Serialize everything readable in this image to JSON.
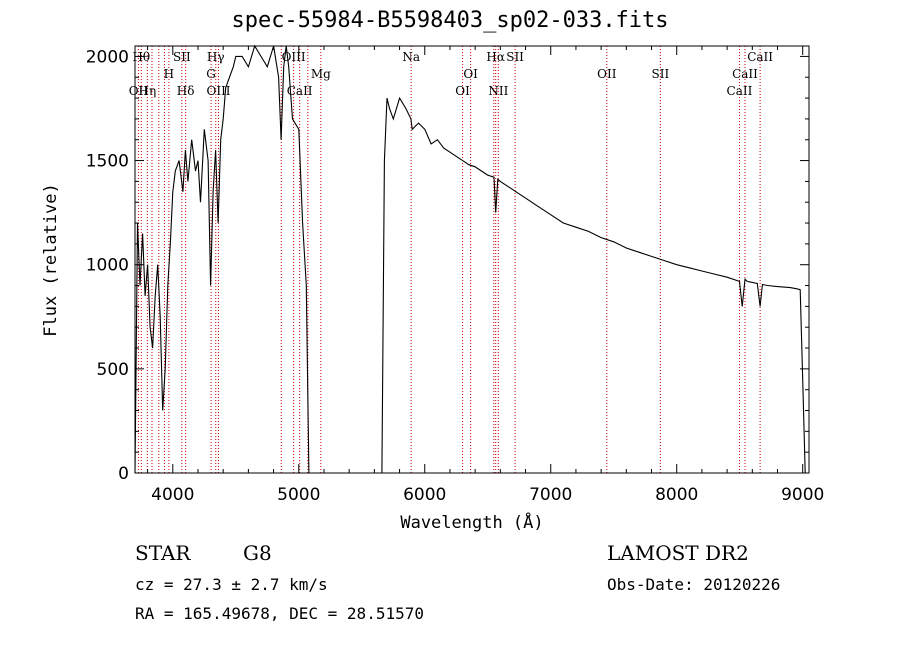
{
  "chart_data": {
    "type": "line",
    "title": "spec-55984-B5598403_sp02-033.fits",
    "xlabel": "Wavelength (Å)",
    "ylabel": "Flux (relative)",
    "xlim": [
      3700,
      9050
    ],
    "ylim": [
      0,
      2050
    ],
    "xticks": [
      4000,
      5000,
      6000,
      7000,
      8000,
      9000
    ],
    "yticks": [
      0,
      500,
      1000,
      1500,
      2000
    ],
    "grid": false,
    "line_color": "#000000",
    "marker_color": "#cc0000",
    "series": [
      {
        "x": [
          3700,
          3720,
          3740,
          3760,
          3780,
          3800,
          3820,
          3840,
          3860,
          3880,
          3900,
          3920,
          3940,
          3960,
          3980,
          4000,
          4020,
          4050,
          4080,
          4100,
          4120,
          4150,
          4180,
          4200,
          4220,
          4250,
          4280,
          4300,
          4320,
          4340,
          4360,
          4380,
          4400,
          4420,
          4450,
          4480,
          4500,
          4550,
          4600,
          4650,
          4700,
          4750,
          4800,
          4840,
          4860,
          4880,
          4900,
          4920,
          4950,
          5000,
          5030,
          5060,
          5080,
          5100,
          5120,
          5200,
          5300,
          5400,
          5500,
          5600,
          5660,
          5680,
          5700,
          5720,
          5750,
          5800,
          5850,
          5890,
          5900,
          5950,
          6000,
          6050,
          6100,
          6150,
          6200,
          6250,
          6300,
          6350,
          6400,
          6450,
          6500,
          6550,
          6563,
          6580,
          6600,
          6650,
          6700,
          6750,
          6800,
          6900,
          7000,
          7100,
          7200,
          7300,
          7400,
          7500,
          7600,
          7700,
          7800,
          7900,
          8000,
          8100,
          8200,
          8300,
          8400,
          8498,
          8520,
          8542,
          8560,
          8600,
          8640,
          8662,
          8680,
          8720,
          8800,
          8900,
          8950,
          8980,
          9000,
          9020
        ],
        "y": [
          0,
          1200,
          900,
          1150,
          850,
          1000,
          700,
          600,
          850,
          1000,
          750,
          300,
          500,
          900,
          1100,
          1350,
          1450,
          1500,
          1350,
          1550,
          1400,
          1600,
          1450,
          1500,
          1300,
          1650,
          1500,
          900,
          1350,
          1550,
          1200,
          1600,
          1700,
          1850,
          1900,
          1950,
          2000,
          2000,
          1950,
          2050,
          2000,
          1950,
          2050,
          1900,
          1600,
          1950,
          2050,
          1950,
          1700,
          1650,
          1200,
          900,
          0,
          0,
          0,
          0,
          0,
          0,
          0,
          0,
          0,
          1500,
          1800,
          1750,
          1700,
          1800,
          1750,
          1700,
          1650,
          1680,
          1650,
          1580,
          1600,
          1560,
          1540,
          1520,
          1500,
          1480,
          1470,
          1450,
          1430,
          1420,
          1250,
          1410,
          1400,
          1380,
          1360,
          1340,
          1320,
          1280,
          1240,
          1200,
          1180,
          1160,
          1130,
          1110,
          1080,
          1060,
          1040,
          1020,
          1000,
          985,
          970,
          955,
          940,
          920,
          800,
          930,
          920,
          915,
          910,
          800,
          905,
          900,
          895,
          890,
          885,
          880,
          450,
          0
        ]
      }
    ],
    "line_markers": [
      {
        "x": 3727,
        "label": "OII",
        "row": 3
      },
      {
        "x": 3750,
        "label": "Hθ",
        "row": 1
      },
      {
        "x": 3798,
        "label": "Hη",
        "row": 3
      },
      {
        "x": 3835,
        "label": "",
        "row": 0
      },
      {
        "x": 3889,
        "label": "",
        "row": 0
      },
      {
        "x": 3934,
        "label": "",
        "row": 0
      },
      {
        "x": 3969,
        "label": "H",
        "row": 2
      },
      {
        "x": 4072,
        "label": "SII",
        "row": 1
      },
      {
        "x": 4102,
        "label": "Hδ",
        "row": 3
      },
      {
        "x": 4304,
        "label": "G",
        "row": 2
      },
      {
        "x": 4341,
        "label": "Hγ",
        "row": 1
      },
      {
        "x": 4363,
        "label": "OIII",
        "row": 3
      },
      {
        "x": 4861,
        "label": "",
        "row": 0
      },
      {
        "x": 4959,
        "label": "OIII",
        "row": 1
      },
      {
        "x": 5007,
        "label": "CaII",
        "row": 3
      },
      {
        "x": 5072,
        "label": "",
        "row": 0
      },
      {
        "x": 5175,
        "label": "Mg",
        "row": 2
      },
      {
        "x": 5892,
        "label": "Na",
        "row": 1
      },
      {
        "x": 6300,
        "label": "OI",
        "row": 3
      },
      {
        "x": 6364,
        "label": "OI",
        "row": 2
      },
      {
        "x": 6548,
        "label": "",
        "row": 0
      },
      {
        "x": 6563,
        "label": "Hα",
        "row": 1
      },
      {
        "x": 6584,
        "label": "NII",
        "row": 3
      },
      {
        "x": 6717,
        "label": "SII",
        "row": 1
      },
      {
        "x": 7445,
        "label": "OII",
        "row": 2
      },
      {
        "x": 7870,
        "label": "SII",
        "row": 2
      },
      {
        "x": 8498,
        "label": "CaII",
        "row": 3
      },
      {
        "x": 8542,
        "label": "CaII",
        "row": 2
      },
      {
        "x": 8662,
        "label": "CaII",
        "row": 1
      }
    ]
  },
  "info": {
    "object_class": "STAR",
    "subclass": "G8",
    "survey": "LAMOST DR2",
    "redshift": "cz = 27.3 ± 2.7 km/s",
    "obs_date": "Obs-Date: 20120226",
    "coords": "RA = 165.49678, DEC =  28.51570"
  }
}
